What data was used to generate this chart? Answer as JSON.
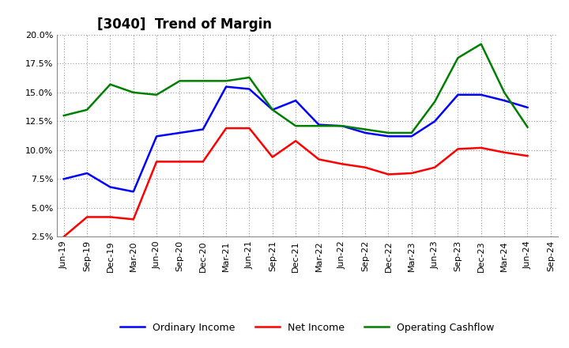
{
  "title": "[3040]  Trend of Margin",
  "x_labels": [
    "Jun-19",
    "Sep-19",
    "Dec-19",
    "Mar-20",
    "Jun-20",
    "Sep-20",
    "Dec-20",
    "Mar-21",
    "Jun-21",
    "Sep-21",
    "Dec-21",
    "Mar-22",
    "Jun-22",
    "Sep-22",
    "Dec-22",
    "Mar-23",
    "Jun-23",
    "Sep-23",
    "Dec-23",
    "Mar-24",
    "Jun-24",
    "Sep-24"
  ],
  "ordinary_income": [
    7.5,
    8.0,
    6.8,
    6.4,
    11.2,
    11.5,
    11.8,
    15.5,
    15.3,
    13.5,
    14.3,
    12.2,
    12.1,
    11.5,
    11.2,
    11.2,
    12.5,
    14.8,
    14.8,
    14.3,
    13.7,
    null
  ],
  "net_income": [
    2.5,
    4.2,
    4.2,
    4.0,
    9.0,
    9.0,
    9.0,
    11.9,
    11.9,
    9.4,
    10.8,
    9.2,
    8.8,
    8.5,
    7.9,
    8.0,
    8.5,
    10.1,
    10.2,
    9.8,
    9.5,
    null
  ],
  "operating_cashflow": [
    13.0,
    13.5,
    15.7,
    15.0,
    14.8,
    16.0,
    16.0,
    16.0,
    16.3,
    13.5,
    12.1,
    12.1,
    12.1,
    11.8,
    11.5,
    11.5,
    14.2,
    18.0,
    19.2,
    15.0,
    12.0,
    null
  ],
  "line_color_blue": "#0000FF",
  "line_color_red": "#FF0000",
  "line_color_green": "#008000",
  "ylim_min": 2.5,
  "ylim_max": 20.0,
  "yticks": [
    2.5,
    5.0,
    7.5,
    10.0,
    12.5,
    15.0,
    17.5,
    20.0
  ],
  "background_color": "#FFFFFF",
  "grid_color": "#999999",
  "title_fontsize": 12,
  "label_fontsize": 8,
  "legend_fontsize": 9
}
